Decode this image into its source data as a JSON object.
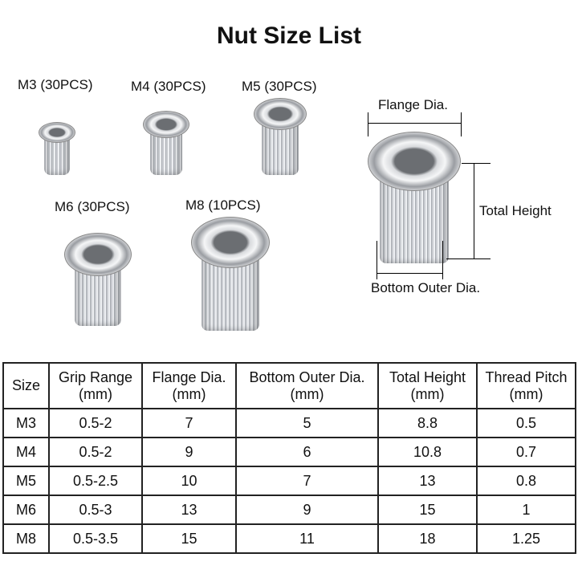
{
  "title": "Nut Size List",
  "nuts": [
    {
      "label": "M3 (30PCS)"
    },
    {
      "label": "M4 (30PCS)"
    },
    {
      "label": "M5 (30PCS)"
    },
    {
      "label": "M6 (30PCS)"
    },
    {
      "label": "M8 (10PCS)"
    }
  ],
  "diagram": {
    "flange": "Flange Dia.",
    "height": "Total Height",
    "bottom": "Bottom Outer Dia."
  },
  "table": {
    "headers": [
      [
        "Size",
        ""
      ],
      [
        "Grip Range",
        "(mm)"
      ],
      [
        "Flange Dia.",
        "(mm)"
      ],
      [
        "Bottom Outer Dia.",
        "(mm)"
      ],
      [
        "Total Height",
        "(mm)"
      ],
      [
        "Thread Pitch",
        "(mm)"
      ]
    ],
    "rows": [
      [
        "M3",
        "0.5-2",
        "7",
        "5",
        "8.8",
        "0.5"
      ],
      [
        "M4",
        "0.5-2",
        "9",
        "6",
        "10.8",
        "0.7"
      ],
      [
        "M5",
        "0.5-2.5",
        "10",
        "7",
        "13",
        "0.8"
      ],
      [
        "M6",
        "0.5-3",
        "13",
        "9",
        "15",
        "1"
      ],
      [
        "M8",
        "0.5-3.5",
        "15",
        "11",
        "18",
        "1.25"
      ]
    ]
  }
}
